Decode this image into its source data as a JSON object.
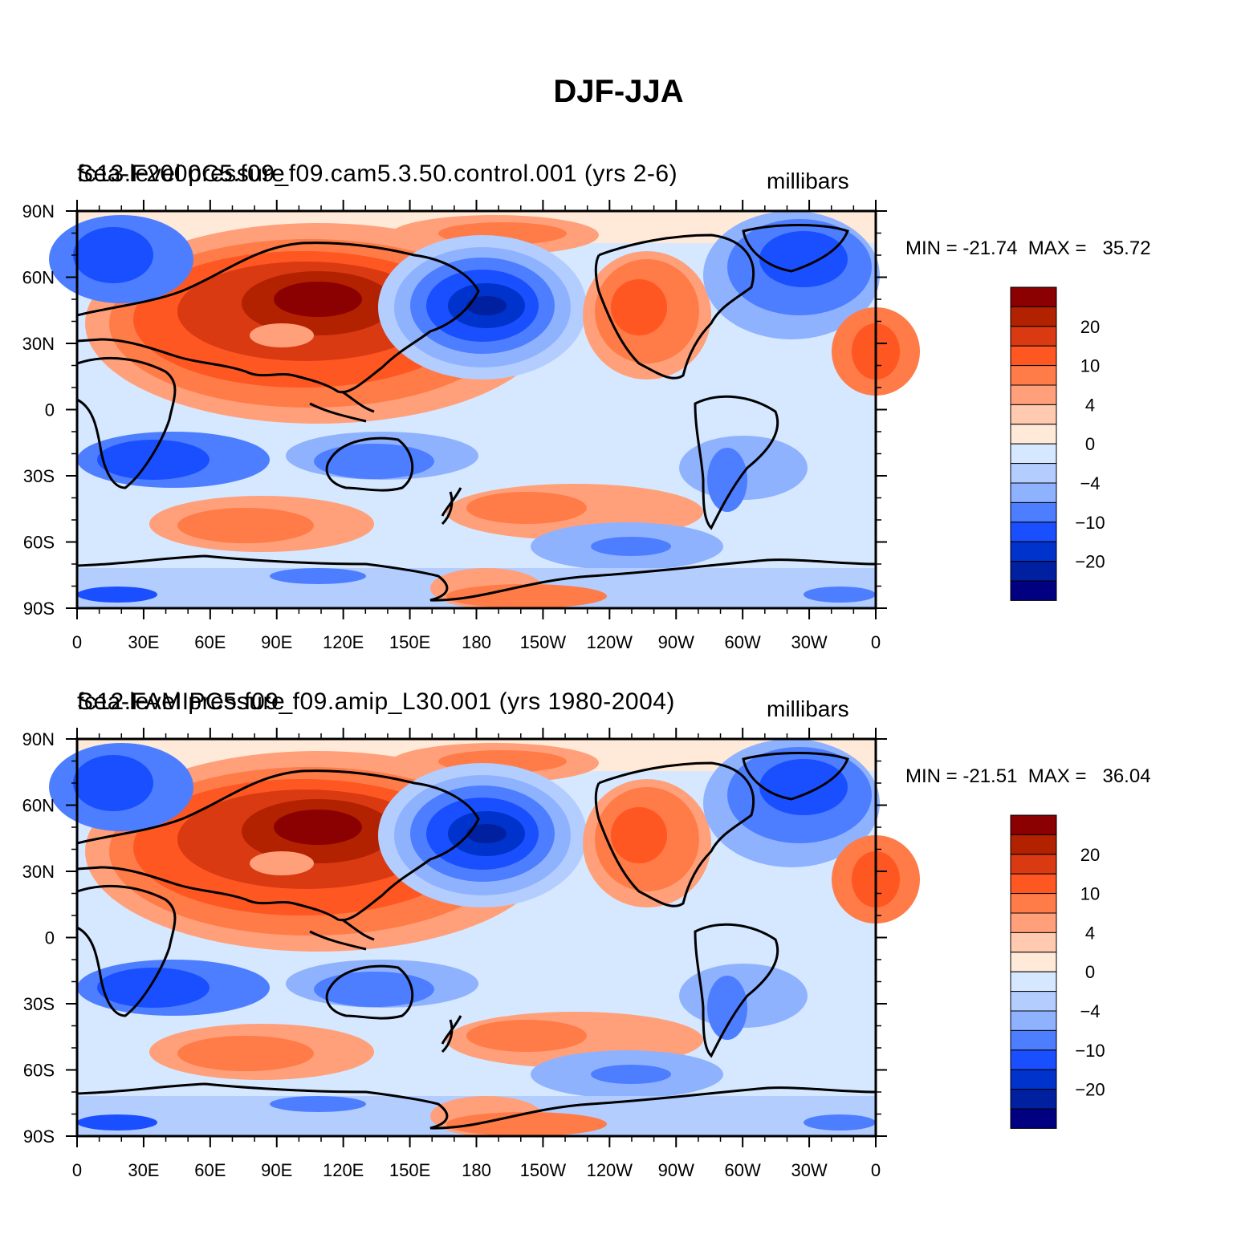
{
  "title": "DJF-JJA",
  "panels": [
    {
      "model_label": "fc13.F2000C5.f09_f09.cam5.3.50.control.001  (yrs 2-6)",
      "variable_label": "Sea-level pressure",
      "units": "millibars",
      "min": "-21.74",
      "max": "35.72"
    },
    {
      "model_label": "fc12.FAMIPC5.f09_f09.amip_L30.001  (yrs 1980-2004)",
      "variable_label": "Sea-level pressure",
      "units": "millibars",
      "min": "-21.51",
      "max": "36.04"
    }
  ],
  "minmax_text": {
    "min_label": "MIN =",
    "max_label": "MAX ="
  },
  "axes": {
    "lat_labels": [
      "90N",
      "60N",
      "30N",
      "0",
      "30S",
      "60S",
      "90S"
    ],
    "lon_labels": [
      "0",
      "30E",
      "60E",
      "90E",
      "120E",
      "150E",
      "180",
      "150W",
      "120W",
      "90W",
      "60W",
      "30W",
      "0"
    ]
  },
  "colorbar": {
    "colors": [
      "#8b0000",
      "#b22200",
      "#d93a12",
      "#ff5722",
      "#ff7b47",
      "#ffa07a",
      "#ffcab0",
      "#ffe9d9",
      "#d6e8ff",
      "#b3cdff",
      "#8fb2ff",
      "#4d7eff",
      "#1a4fff",
      "#0033cc",
      "#0020a0",
      "#000080"
    ],
    "tick_labels": [
      "20",
      "10",
      "4",
      "0",
      "−4",
      "−10",
      "−20"
    ]
  }
}
